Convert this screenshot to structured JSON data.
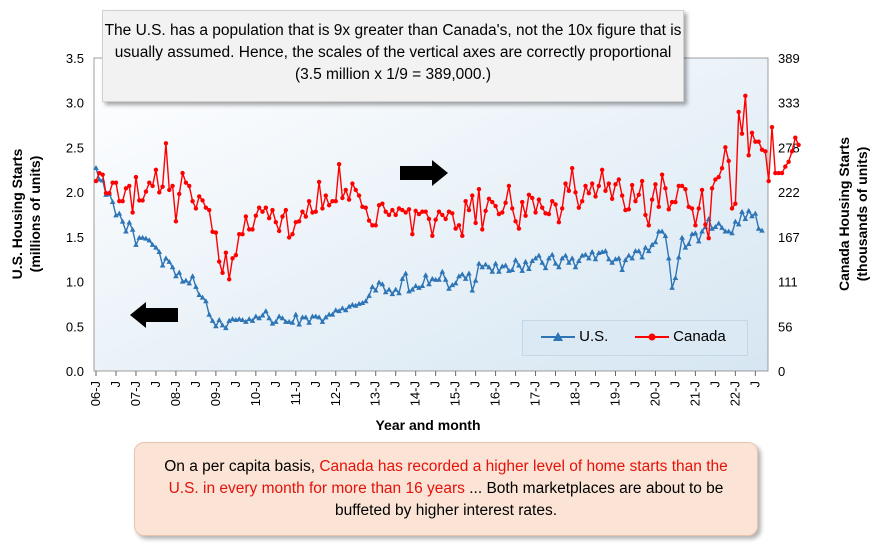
{
  "chart_data": {
    "type": "line",
    "xlabel": "Year and month",
    "y_left_label": [
      "U.S. Housing Starts",
      "(millions of units)"
    ],
    "y_right_label": [
      "Canada Housing Starts",
      "(thousands of units)"
    ],
    "y_left_ticks": [
      "0.0",
      "0.5",
      "1.0",
      "1.5",
      "2.0",
      "2.5",
      "3.0",
      "3.5"
    ],
    "y_right_ticks": [
      "0",
      "56",
      "111",
      "167",
      "222",
      "278",
      "333",
      "389"
    ],
    "ylim_left": [
      0,
      3.5
    ],
    "ylim_right": [
      0,
      389
    ],
    "x_tick_labels": [
      "06-J",
      "J",
      "07-J",
      "J",
      "08-J",
      "J",
      "09-J",
      "J",
      "10-J",
      "J",
      "11-J",
      "J",
      "12-J",
      "J",
      "13-J",
      "J",
      "14-J",
      "J",
      "15-J",
      "J",
      "16-J",
      "J",
      "17-J",
      "J",
      "18-J",
      "J",
      "19-J",
      "J",
      "20-J",
      "J",
      "21-J",
      "J",
      "22-J",
      "J"
    ],
    "x_start": "2006-01",
    "grid": false,
    "legend_placement": "bottom-right",
    "series": [
      {
        "name": "U.S.",
        "axis": "left",
        "color": "#2e75b6",
        "marker": "triangle",
        "values": [
          2.27,
          2.14,
          2.13,
          1.97,
          1.98,
          1.89,
          1.74,
          1.76,
          1.67,
          1.56,
          1.66,
          1.58,
          1.41,
          1.49,
          1.49,
          1.48,
          1.46,
          1.41,
          1.38,
          1.33,
          1.18,
          1.26,
          1.22,
          1.16,
          1.06,
          1.1,
          1.0,
          1.01,
          0.98,
          1.06,
          0.94,
          0.85,
          0.82,
          0.78,
          0.63,
          0.56,
          0.5,
          0.57,
          0.51,
          0.48,
          0.56,
          0.58,
          0.57,
          0.58,
          0.57,
          0.55,
          0.58,
          0.56,
          0.61,
          0.59,
          0.62,
          0.67,
          0.59,
          0.53,
          0.55,
          0.61,
          0.59,
          0.55,
          0.55,
          0.54,
          0.63,
          0.52,
          0.6,
          0.6,
          0.54,
          0.61,
          0.61,
          0.6,
          0.55,
          0.6,
          0.63,
          0.63,
          0.68,
          0.67,
          0.7,
          0.68,
          0.72,
          0.74,
          0.73,
          0.75,
          0.76,
          0.78,
          0.84,
          0.94,
          0.9,
          0.99,
          0.97,
          0.88,
          0.91,
          0.86,
          0.91,
          0.87,
          1.03,
          1.09,
          0.89,
          0.91,
          0.95,
          0.93,
          0.95,
          1.07,
          0.97,
          1.03,
          1.02,
          1.02,
          1.11,
          1.02,
          0.92,
          0.96,
          0.98,
          1.06,
          1.08,
          1.03,
          1.09,
          0.9,
          1.01,
          1.2,
          1.16,
          1.19,
          1.16,
          1.11,
          1.2,
          1.11,
          1.17,
          1.18,
          1.12,
          1.13,
          1.24,
          1.18,
          1.12,
          1.22,
          1.14,
          1.23,
          1.26,
          1.29,
          1.21,
          1.15,
          1.26,
          1.3,
          1.2,
          1.16,
          1.26,
          1.29,
          1.21,
          1.26,
          1.16,
          1.23,
          1.29,
          1.3,
          1.26,
          1.33,
          1.25,
          1.32,
          1.33,
          1.34,
          1.25,
          1.21,
          1.25,
          1.26,
          1.13,
          1.24,
          1.29,
          1.26,
          1.34,
          1.34,
          1.27,
          1.38,
          1.34,
          1.41,
          1.44,
          1.56,
          1.56,
          1.51,
          1.26,
          0.93,
          1.04,
          1.27,
          1.49,
          1.38,
          1.42,
          1.53,
          1.54,
          1.45,
          1.56,
          1.61,
          1.7,
          1.59,
          1.61,
          1.65,
          1.6,
          1.56,
          1.56,
          1.54,
          1.67,
          1.64,
          1.78,
          1.7,
          1.79,
          1.73,
          1.76,
          1.59,
          1.57
        ]
      },
      {
        "name": "Canada",
        "axis": "right",
        "color": "#ff0000",
        "marker": "circle",
        "values": [
          236,
          246,
          244,
          221,
          221,
          234,
          234,
          211,
          211,
          227,
          230,
          197,
          241,
          212,
          212,
          223,
          234,
          230,
          250,
          222,
          229,
          283,
          225,
          230,
          186,
          220,
          246,
          234,
          230,
          211,
          202,
          217,
          212,
          203,
          200,
          173,
          172,
          136,
          122,
          147,
          114,
          140,
          144,
          170,
          170,
          192,
          176,
          176,
          193,
          203,
          198,
          203,
          190,
          200,
          185,
          174,
          192,
          200,
          166,
          170,
          185,
          186,
          198,
          192,
          211,
          197,
          198,
          235,
          202,
          218,
          206,
          211,
          211,
          257,
          215,
          225,
          213,
          233,
          225,
          218,
          204,
          203,
          187,
          181,
          181,
          206,
          208,
          198,
          194,
          200,
          194,
          202,
          200,
          197,
          201,
          170,
          199,
          195,
          198,
          198,
          189,
          168,
          188,
          198,
          194,
          189,
          198,
          196,
          177,
          181,
          168,
          211,
          200,
          218,
          184,
          226,
          176,
          199,
          214,
          210,
          205,
          195,
          197,
          209,
          230,
          202,
          186,
          177,
          210,
          193,
          219,
          215,
          197,
          213,
          203,
          196,
          195,
          211,
          207,
          185,
          202,
          233,
          224,
          252,
          222,
          203,
          211,
          230,
          221,
          233,
          217,
          230,
          250,
          224,
          233,
          214,
          232,
          238,
          218,
          200,
          201,
          231,
          211,
          219,
          236,
          194,
          181,
          213,
          232,
          204,
          244,
          227,
          201,
          210,
          210,
          230,
          230,
          226,
          204,
          202,
          181,
          202,
          225,
          182,
          165,
          227,
          238,
          241,
          252,
          278,
          261,
          202,
          208,
          322,
          295,
          342,
          268,
          296,
          285,
          285,
          275,
          273,
          236,
          303,
          246,
          246,
          246,
          254,
          260,
          273,
          290,
          281
        ],
        "last_value_right": 281
      }
    ]
  },
  "annotations": {
    "top_note": "The U.S. has a population that is 9x greater than Canada's, not the 10x figure that is usually assumed. Hence, the scales of the vertical axes are correctly proportional (3.5 million x 1/9 = 389,000.)",
    "bottom_note_prefix": "On a per capita basis, ",
    "bottom_note_red": "Canada has recorded a higher level of home starts than the U.S. in every month for more than 16 years",
    "bottom_note_suffix": " ... Both marketplaces are about to be buffeted by higher interest rates."
  },
  "arrows": {
    "left_arrow": "arrow-left-icon",
    "right_arrow": "arrow-right-icon"
  }
}
